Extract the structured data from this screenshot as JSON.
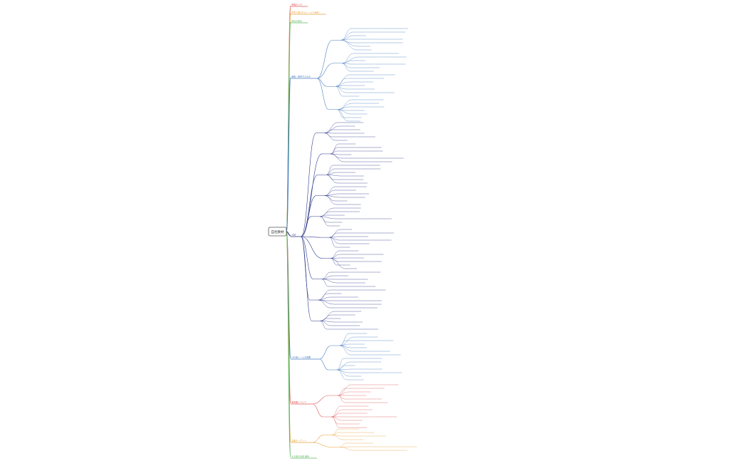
{
  "root": {
    "label": "自社教材"
  },
  "branches": [
    {
      "label": "用語のメモ",
      "color": "#e05a5a"
    },
    {
      "label": "学習で使われるツールや素材",
      "color": "#e8a33a"
    },
    {
      "label": "自社の強み",
      "color": "#5cb85c"
    },
    {
      "label": "価値・提供するもの",
      "color": "#4a7fc1"
    },
    {
      "label": "人材",
      "color": "#2d3a8c"
    },
    {
      "label": "LMS等ツールの概要",
      "color": "#4a7fc1"
    },
    {
      "label": "運用面について",
      "color": "#e05a5a"
    },
    {
      "label": "営業ターゲット",
      "color": "#e8a33a"
    },
    {
      "label": "その他の社員 補足",
      "color": "#5cb85c"
    }
  ]
}
